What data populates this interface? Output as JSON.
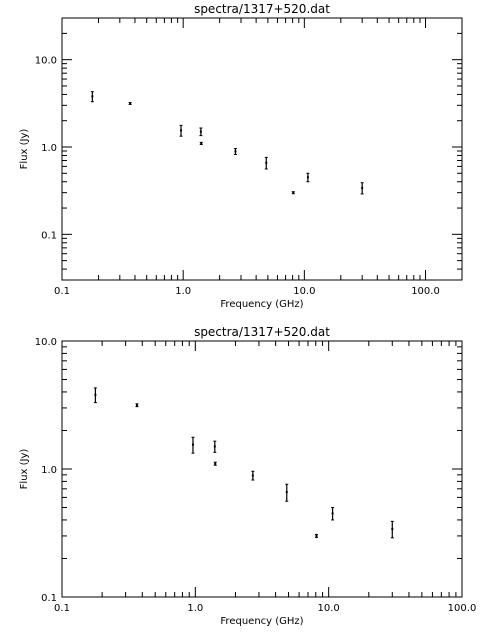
{
  "chart_data": [
    {
      "type": "scatter",
      "title": "spectra/1317+520.dat",
      "xlabel": "Frequency (GHz)",
      "ylabel": "Flux (Jy)",
      "xscale": "log",
      "yscale": "log",
      "xlim": [
        0.1,
        200
      ],
      "ylim": [
        0.03,
        30
      ],
      "xticks": [
        0.1,
        1.0,
        10.0,
        100.0
      ],
      "xtick_labels": [
        "0.1",
        "1.0",
        "10.0",
        "100.0"
      ],
      "yticks": [
        0.1,
        1.0,
        10.0
      ],
      "ytick_labels": [
        "0.1",
        "1.0",
        "10.0"
      ],
      "grid": false,
      "points": [
        {
          "x": 0.178,
          "y": 3.8,
          "yerr": 0.5
        },
        {
          "x": 0.365,
          "y": 3.15,
          "yerr": 0.08
        },
        {
          "x": 0.96,
          "y": 1.55,
          "yerr": 0.22
        },
        {
          "x": 1.4,
          "y": 1.5,
          "yerr": 0.15
        },
        {
          "x": 1.41,
          "y": 1.1,
          "yerr": 0.03
        },
        {
          "x": 2.7,
          "y": 0.89,
          "yerr": 0.07
        },
        {
          "x": 4.85,
          "y": 0.66,
          "yerr": 0.1
        },
        {
          "x": 8.1,
          "y": 0.3,
          "yerr": 0.008
        },
        {
          "x": 10.7,
          "y": 0.45,
          "yerr": 0.05
        },
        {
          "x": 30.0,
          "y": 0.34,
          "yerr": 0.05
        }
      ]
    },
    {
      "type": "scatter",
      "title": "spectra/1317+520.dat",
      "xlabel": "Frequency (GHz)",
      "ylabel": "Flux (Jy)",
      "xscale": "log",
      "yscale": "log",
      "xlim": [
        0.1,
        100
      ],
      "ylim": [
        0.1,
        10
      ],
      "xticks": [
        0.1,
        1.0,
        10.0,
        100.0
      ],
      "xtick_labels": [
        "0.1",
        "1.0",
        "10.0",
        "100.0"
      ],
      "yticks": [
        0.1,
        1.0,
        10.0
      ],
      "ytick_labels": [
        "0.1",
        "1.0",
        "10.0"
      ],
      "grid": false,
      "points": [
        {
          "x": 0.178,
          "y": 3.8,
          "yerr": 0.5
        },
        {
          "x": 0.365,
          "y": 3.15,
          "yerr": 0.08
        },
        {
          "x": 0.96,
          "y": 1.55,
          "yerr": 0.22
        },
        {
          "x": 1.4,
          "y": 1.5,
          "yerr": 0.15
        },
        {
          "x": 1.41,
          "y": 1.1,
          "yerr": 0.03
        },
        {
          "x": 2.7,
          "y": 0.89,
          "yerr": 0.07
        },
        {
          "x": 4.85,
          "y": 0.66,
          "yerr": 0.1
        },
        {
          "x": 8.1,
          "y": 0.3,
          "yerr": 0.008
        },
        {
          "x": 10.7,
          "y": 0.45,
          "yerr": 0.05
        },
        {
          "x": 30.0,
          "y": 0.34,
          "yerr": 0.05
        }
      ]
    }
  ]
}
